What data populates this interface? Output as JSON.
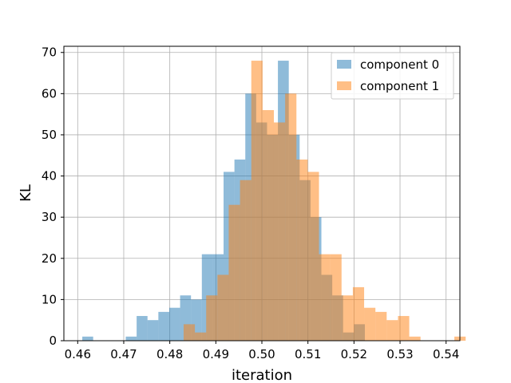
{
  "chart_data": {
    "type": "bar",
    "title": "",
    "xlabel": "iteration",
    "ylabel": "KL",
    "xlim": [
      0.457,
      0.543
    ],
    "ylim": [
      0,
      71.5
    ],
    "xticks": [
      0.46,
      0.47,
      0.48,
      0.49,
      0.5,
      0.51,
      0.52,
      0.53,
      0.54
    ],
    "xtick_labels": [
      "0.46",
      "0.47",
      "0.48",
      "0.49",
      "0.50",
      "0.51",
      "0.52",
      "0.53",
      "0.54"
    ],
    "yticks": [
      0,
      10,
      20,
      30,
      40,
      50,
      60,
      70
    ],
    "ytick_labels": [
      "0",
      "10",
      "20",
      "30",
      "40",
      "50",
      "60",
      "70"
    ],
    "grid": true,
    "legend_position": "top-right",
    "series": [
      {
        "name": "component 0",
        "color": "#1f77b4",
        "opacity": 0.5,
        "bin_start": 0.461,
        "bin_width": 0.00236,
        "counts": [
          1,
          0,
          0,
          0,
          1,
          6,
          5,
          7,
          8,
          11,
          10,
          21,
          21,
          41,
          44,
          60,
          53,
          50,
          68,
          50,
          39,
          30,
          16,
          11,
          2,
          4,
          0,
          0,
          0,
          0,
          0,
          0,
          0,
          0
        ]
      },
      {
        "name": "component 1",
        "color": "#ff7f0e",
        "opacity": 0.5,
        "bin_start": 0.483,
        "bin_width": 0.00245,
        "counts": [
          4,
          2,
          11,
          16,
          33,
          39,
          68,
          56,
          53,
          60,
          44,
          41,
          21,
          21,
          11,
          13,
          8,
          7,
          5,
          6,
          1,
          0,
          0,
          0,
          1
        ]
      }
    ]
  }
}
